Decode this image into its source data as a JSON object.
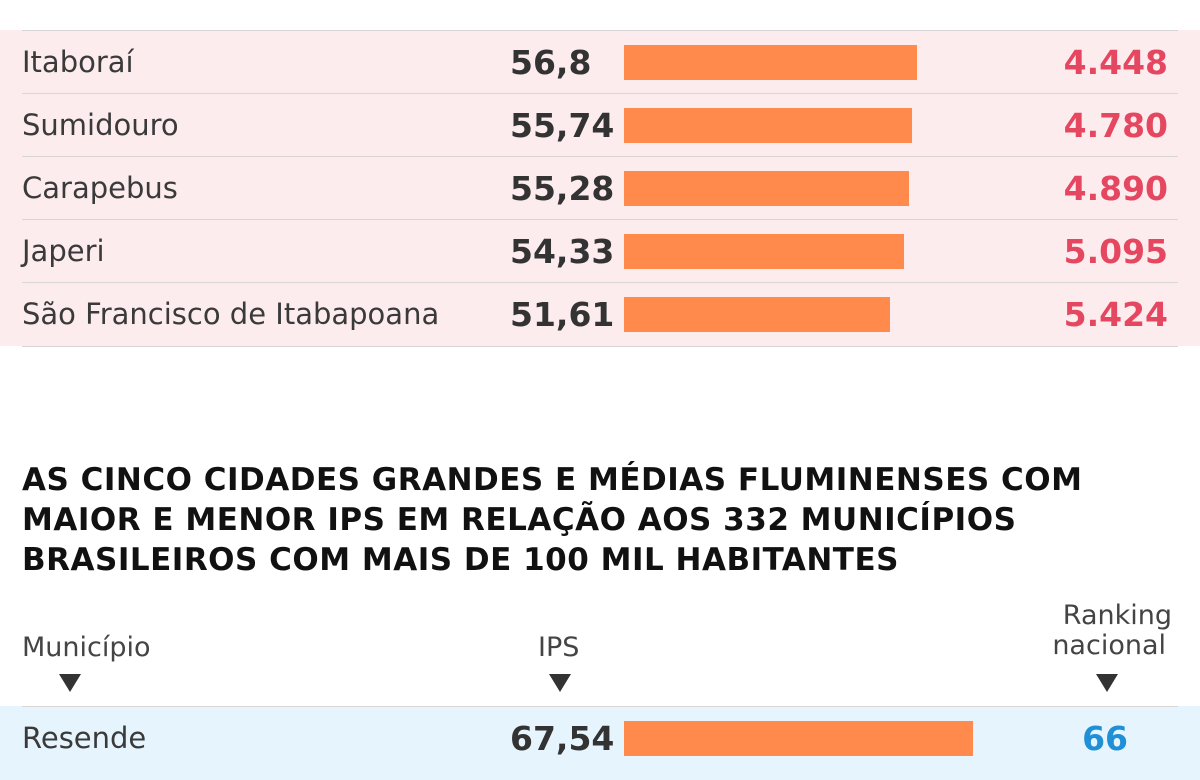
{
  "chart_data": [
    {
      "type": "table",
      "series": [
        {
          "name": "IPS",
          "values": [
            56.8,
            55.74,
            55.28,
            54.33,
            51.61
          ]
        }
      ],
      "rows": [
        {
          "municipio": "Itaboraí",
          "ips": "56,8",
          "ips_value": 56.8,
          "ranking": "4.448"
        },
        {
          "municipio": "Sumidouro",
          "ips": "55,74",
          "ips_value": 55.74,
          "ranking": "4.780"
        },
        {
          "municipio": "Carapebus",
          "ips": "55,28",
          "ips_value": 55.28,
          "ranking": "4.890"
        },
        {
          "municipio": "Japeri",
          "ips": "54,33",
          "ips_value": 54.33,
          "ranking": "5.095"
        },
        {
          "municipio": "São Francisco de Itabapoana",
          "ips": "51,61",
          "ips_value": 51.61,
          "ranking": "5.424"
        }
      ],
      "colors": {
        "bar": "#ff8a4c",
        "ranking": "#e4475f",
        "row_background": "#fdecee"
      }
    },
    {
      "type": "table",
      "title": "AS CINCO CIDADES GRANDES E MÉDIAS FLUMINENSES COM MAIOR E MENOR IPS EM RELAÇÃO AOS 332 MUNICÍPIOS BRASILEIROS COM MAIS DE 100 MIL HABITANTES",
      "headers": {
        "municipio": "Município",
        "ips": "IPS",
        "ranking_line1": "Ranking",
        "ranking_line2": "nacional"
      },
      "series": [
        {
          "name": "IPS",
          "values": [
            67.54
          ]
        }
      ],
      "rows": [
        {
          "municipio": "Resende",
          "ips": "67,54",
          "ips_value": 67.54,
          "ranking": "66"
        }
      ],
      "colors": {
        "bar": "#ff8a4c",
        "ranking": "#1f8fd6",
        "row_background": "#e6f5fd"
      }
    }
  ],
  "bar_scale_max": 100
}
